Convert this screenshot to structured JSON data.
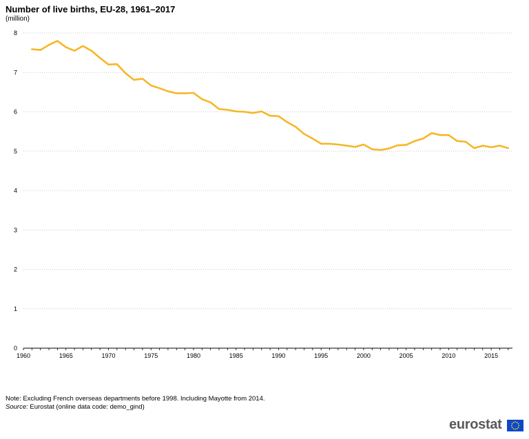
{
  "chart_data": {
    "type": "line",
    "title": "Number of live births, EU-28, 1961–2017",
    "unit_label": "(million)",
    "x": [
      1961,
      1962,
      1963,
      1964,
      1965,
      1966,
      1967,
      1968,
      1969,
      1970,
      1971,
      1972,
      1973,
      1974,
      1975,
      1976,
      1977,
      1978,
      1979,
      1980,
      1981,
      1982,
      1983,
      1984,
      1985,
      1986,
      1987,
      1988,
      1989,
      1990,
      1991,
      1992,
      1993,
      1994,
      1995,
      1996,
      1997,
      1998,
      1999,
      2000,
      2001,
      2002,
      2003,
      2004,
      2005,
      2006,
      2007,
      2008,
      2009,
      2010,
      2011,
      2012,
      2013,
      2014,
      2015,
      2016,
      2017
    ],
    "series": [
      {
        "color": "#f7b626",
        "values": [
          7.59,
          7.57,
          7.7,
          7.8,
          7.64,
          7.55,
          7.67,
          7.55,
          7.37,
          7.2,
          7.21,
          6.98,
          6.81,
          6.84,
          6.67,
          6.6,
          6.52,
          6.47,
          6.47,
          6.48,
          6.32,
          6.24,
          6.07,
          6.05,
          6.01,
          6.0,
          5.97,
          6.01,
          5.9,
          5.89,
          5.74,
          5.62,
          5.44,
          5.32,
          5.19,
          5.19,
          5.17,
          5.14,
          5.11,
          5.17,
          5.05,
          5.03,
          5.07,
          5.15,
          5.16,
          5.26,
          5.32,
          5.46,
          5.41,
          5.41,
          5.26,
          5.24,
          5.08,
          5.14,
          5.1,
          5.14,
          5.08
        ]
      }
    ],
    "xlim": [
      1960,
      2017.5
    ],
    "ylim": [
      0,
      8
    ],
    "x_ticks": [
      1960,
      1965,
      1970,
      1975,
      1980,
      1985,
      1990,
      1995,
      2000,
      2005,
      2010,
      2015
    ],
    "y_ticks": [
      0,
      1,
      2,
      3,
      4,
      5,
      6,
      7,
      8
    ],
    "grid": "horizontal dotted",
    "legend": "none"
  },
  "footer": {
    "note": "Note: Excluding French overseas departments before 1998. Including Mayotte from 2014.",
    "source_label": "Source:",
    "source_text": " Eurostat (online data code: demo_gind)"
  },
  "logo": {
    "text": "eurostat",
    "flag_color": "#0e47cb"
  }
}
